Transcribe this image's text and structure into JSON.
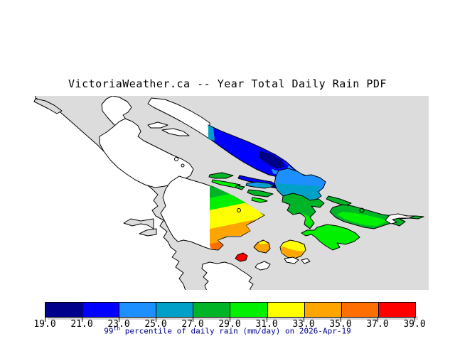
{
  "title": "VictoriaWeather.ca -- Year Total Daily Rain PDF",
  "caption": {
    "number": "99",
    "superscript": "th",
    "rest": " percentile of daily rain (mm/day) on 2026-Apr-19"
  },
  "colorbar": {
    "min": 19.0,
    "max": 39.0,
    "step": 2.0,
    "tick_labels": [
      "19.0",
      "21.0",
      "23.0",
      "25.0",
      "27.0",
      "29.0",
      "31.0",
      "33.0",
      "35.0",
      "37.0",
      "39.0"
    ],
    "segment_colors": [
      "#00008b",
      "#0000ff",
      "#1e8fff",
      "#00a0c8",
      "#00b428",
      "#00f000",
      "#ffff00",
      "#ffa500",
      "#ff6e00",
      "#ff0000"
    ],
    "segment_ranges": [
      [
        19,
        21
      ],
      [
        21,
        23
      ],
      [
        23,
        25
      ],
      [
        25,
        27
      ],
      [
        27,
        29
      ],
      [
        29,
        31
      ],
      [
        31,
        33
      ],
      [
        33,
        35
      ],
      [
        35,
        37
      ],
      [
        37,
        39
      ]
    ],
    "units": "mm/day"
  },
  "map": {
    "colors": {
      "water": "#dcdcdc",
      "land": "#ffffff",
      "coastline": "#000000"
    },
    "regions": [
      {
        "name": "north-island-navy-core",
        "bin": "19-21"
      },
      {
        "name": "north-long-island",
        "bin": "21-23"
      },
      {
        "name": "northeast-island",
        "bin": "23-25"
      },
      {
        "name": "small-mid-islands",
        "bin": "25-29"
      },
      {
        "name": "east-green-islands",
        "bin": "27-31"
      },
      {
        "name": "saanich-peninsula-north",
        "bin": "27-31"
      },
      {
        "name": "saanich-peninsula-mid",
        "bin": "31-33"
      },
      {
        "name": "saanich-peninsula-south",
        "bin": "33-37"
      },
      {
        "name": "victoria-red-islet",
        "bin": "37-39"
      },
      {
        "name": "southeast-yellow-orange-island",
        "bin": "31-35"
      },
      {
        "name": "small-orange-islet",
        "bin": "33-37"
      }
    ]
  }
}
